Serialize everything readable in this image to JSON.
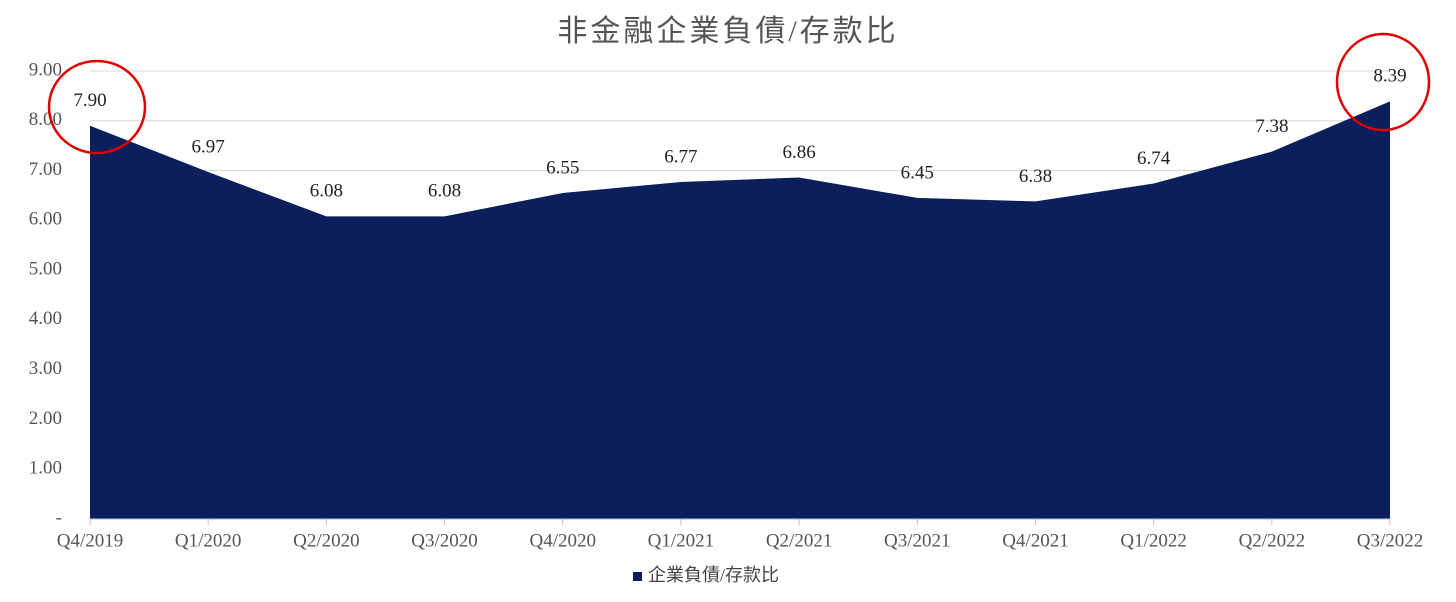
{
  "chart_data": {
    "type": "area",
    "title": "非金融企業負債/存款比",
    "categories": [
      "Q4/2019",
      "Q1/2020",
      "Q2/2020",
      "Q3/2020",
      "Q4/2020",
      "Q1/2021",
      "Q2/2021",
      "Q3/2021",
      "Q4/2021",
      "Q1/2022",
      "Q2/2022",
      "Q3/2022"
    ],
    "series": [
      {
        "name": "企業負債/存款比",
        "color": "#0b1f5c",
        "values": [
          7.9,
          6.97,
          6.08,
          6.08,
          6.55,
          6.77,
          6.86,
          6.45,
          6.38,
          6.74,
          7.38,
          8.39
        ],
        "value_labels": [
          "7.90",
          "6.97",
          "6.08",
          "6.08",
          "6.55",
          "6.77",
          "6.86",
          "6.45",
          "6.38",
          "6.74",
          "7.38",
          "8.39"
        ]
      }
    ],
    "ylim": [
      0,
      9
    ],
    "yticks": [
      {
        "value": 0,
        "label": "-"
      },
      {
        "value": 1,
        "label": "1.00"
      },
      {
        "value": 2,
        "label": "2.00"
      },
      {
        "value": 3,
        "label": "3.00"
      },
      {
        "value": 4,
        "label": "4.00"
      },
      {
        "value": 5,
        "label": "5.00"
      },
      {
        "value": 6,
        "label": "6.00"
      },
      {
        "value": 7,
        "label": "7.00"
      },
      {
        "value": 8,
        "label": "8.00"
      },
      {
        "value": 9,
        "label": "9.00"
      }
    ],
    "grid": true,
    "legend": "bottom"
  }
}
